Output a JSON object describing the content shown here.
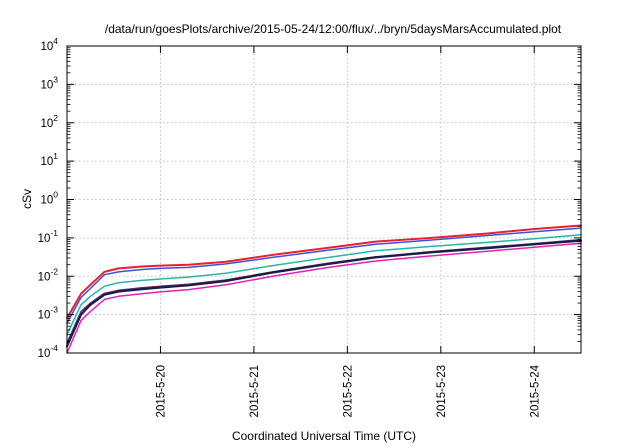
{
  "chart_data": {
    "type": "line",
    "title": "/data/run/goesPlots/archive/2015-05-24/12:00/flux/../bryn/5daysMarsAccumulated.plot",
    "xlabel": "Coordinated Universal Time (UTC)",
    "ylabel": "cSv",
    "y_scale": "log",
    "ylim": [
      0.0001,
      10000
    ],
    "xlim": [
      "2015-05-19 00:00",
      "2015-05-24 12:00"
    ],
    "grid": true,
    "x_ticks": [
      "2015-5-20",
      "2015-5-21",
      "2015-5-22",
      "2015-5-23",
      "2015-5-24"
    ],
    "y_ticks": [
      {
        "base": "10",
        "exp": "-4",
        "value": 0.0001
      },
      {
        "base": "10",
        "exp": "-3",
        "value": 0.001
      },
      {
        "base": "10",
        "exp": "-2",
        "value": 0.01
      },
      {
        "base": "10",
        "exp": "-1",
        "value": 0.1
      },
      {
        "base": "10",
        "exp": "0",
        "value": 1
      },
      {
        "base": "10",
        "exp": "1",
        "value": 10
      },
      {
        "base": "10",
        "exp": "2",
        "value": 100
      },
      {
        "base": "10",
        "exp": "3",
        "value": 1000
      },
      {
        "base": "10",
        "exp": "4",
        "value": 10000
      }
    ],
    "x": [
      "2015-05-19 00:00",
      "2015-05-19 03:36",
      "2015-05-19 06:00",
      "2015-05-19 09:36",
      "2015-05-19 13:12",
      "2015-05-19 19:12",
      "2015-05-20 00:00",
      "2015-05-20 07:12",
      "2015-05-20 16:48",
      "2015-05-21 04:48",
      "2015-05-21 19:12",
      "2015-05-22 07:12",
      "2015-05-22 21:36",
      "2015-05-23 12:00",
      "2015-05-24 00:00",
      "2015-05-24 12:00"
    ],
    "series": [
      {
        "color": "#e8212b",
        "stroke": 2,
        "values": [
          0.0008,
          0.0035,
          0.006,
          0.013,
          0.016,
          0.018,
          0.019,
          0.02,
          0.024,
          0.036,
          0.055,
          0.08,
          0.1,
          0.13,
          0.17,
          0.21
        ]
      },
      {
        "color": "#3b4fe0",
        "stroke": 1.5,
        "values": [
          0.0006,
          0.0028,
          0.0048,
          0.011,
          0.013,
          0.015,
          0.016,
          0.017,
          0.021,
          0.031,
          0.048,
          0.068,
          0.088,
          0.115,
          0.145,
          0.18
        ]
      },
      {
        "color": "#26b6a8",
        "stroke": 1.5,
        "values": [
          0.0003,
          0.0018,
          0.003,
          0.0055,
          0.0068,
          0.0078,
          0.0085,
          0.0095,
          0.012,
          0.019,
          0.031,
          0.046,
          0.06,
          0.076,
          0.095,
          0.12
        ]
      },
      {
        "color": "#5a2d7e",
        "stroke": 1.5,
        "values": [
          0.00018,
          0.0012,
          0.002,
          0.0036,
          0.0043,
          0.005,
          0.0055,
          0.0062,
          0.008,
          0.013,
          0.022,
          0.032,
          0.044,
          0.057,
          0.071,
          0.09
        ]
      },
      {
        "color": "#1c1c40",
        "stroke": 2.2,
        "values": [
          0.00015,
          0.001,
          0.0018,
          0.0033,
          0.004,
          0.0046,
          0.0051,
          0.0058,
          0.0075,
          0.0125,
          0.021,
          0.031,
          0.042,
          0.054,
          0.068,
          0.085
        ]
      },
      {
        "color": "#e820b8",
        "stroke": 1.5,
        "values": [
          0.0001,
          0.0007,
          0.0012,
          0.0025,
          0.003,
          0.0035,
          0.0039,
          0.0045,
          0.006,
          0.01,
          0.017,
          0.025,
          0.034,
          0.045,
          0.057,
          0.072
        ]
      }
    ]
  }
}
